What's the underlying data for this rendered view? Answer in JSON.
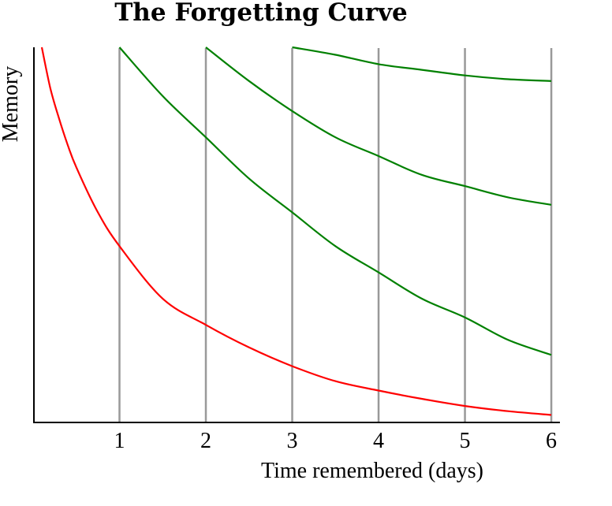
{
  "chart_data": {
    "type": "line",
    "title": "The Forgetting Curve",
    "xlabel": "Time remembered (days)",
    "ylabel": "Memory",
    "xlim": [
      0.1,
      6
    ],
    "ylim": [
      0,
      1
    ],
    "x_ticks": [
      "1",
      "2",
      "3",
      "4",
      "5",
      "6"
    ],
    "grid": "vertical lines at each day",
    "colors": {
      "original_curve": "#ff0000",
      "review_curves": "#008000",
      "gridlines": "#999999",
      "axes": "#000000"
    },
    "series": [
      {
        "color": "#ff0000",
        "x": [
          0.1,
          0.2,
          0.3,
          0.4,
          0.5,
          0.75,
          1,
          1.5,
          2,
          2.5,
          3,
          3.5,
          4,
          4.5,
          5,
          5.5,
          6
        ],
        "y": [
          1.0,
          0.89,
          0.81,
          0.74,
          0.68,
          0.56,
          0.47,
          0.33,
          0.26,
          0.2,
          0.15,
          0.11,
          0.085,
          0.063,
          0.044,
          0.03,
          0.02
        ]
      },
      {
        "color": "#008000",
        "x": [
          1,
          1.5,
          2,
          2.5,
          3,
          3.5,
          4,
          4.5,
          5,
          5.5,
          6
        ],
        "y": [
          1.0,
          0.87,
          0.76,
          0.65,
          0.56,
          0.47,
          0.4,
          0.33,
          0.28,
          0.22,
          0.18
        ]
      },
      {
        "color": "#008000",
        "x": [
          2,
          2.5,
          3,
          3.5,
          4,
          4.5,
          5,
          5.5,
          6
        ],
        "y": [
          1.0,
          0.91,
          0.83,
          0.76,
          0.71,
          0.66,
          0.63,
          0.6,
          0.58
        ]
      },
      {
        "color": "#008000",
        "x": [
          3,
          3.5,
          4,
          4.5,
          5,
          5.5,
          6
        ],
        "y": [
          1.0,
          0.98,
          0.955,
          0.94,
          0.925,
          0.915,
          0.91
        ]
      }
    ]
  }
}
